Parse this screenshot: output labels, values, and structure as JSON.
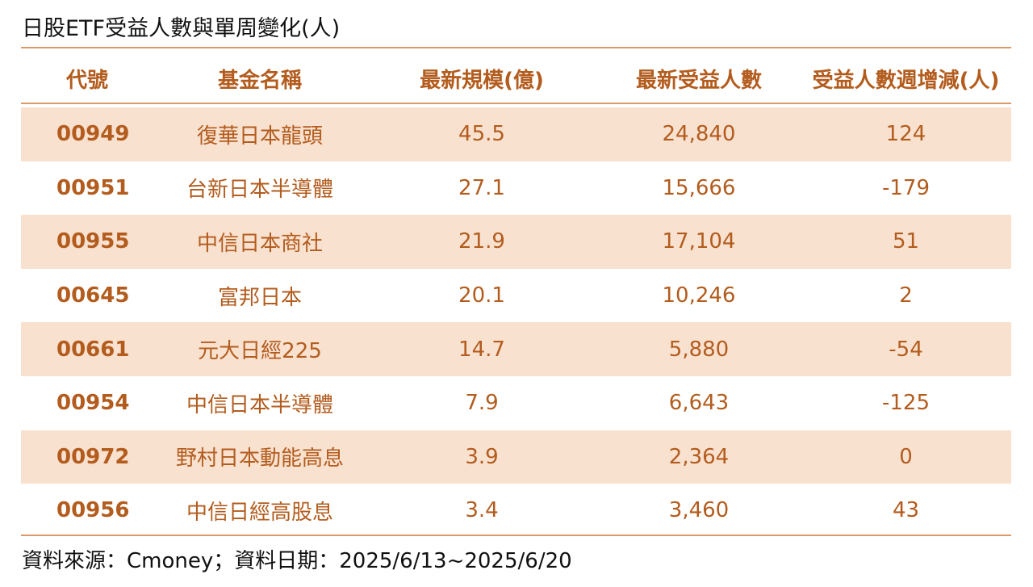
{
  "title": "日股ETF受益人數與單周變化(人)",
  "colors": {
    "accent_text": "#b35c1e",
    "rule": "#d99a6c",
    "row_shade": "#f8e1cf"
  },
  "table": {
    "headers": [
      "代號",
      "基金名稱",
      "最新規模(億)",
      "最新受益人數",
      "受益人數週增減(人)"
    ],
    "rows": [
      {
        "code": "00949",
        "name": "復華日本龍頭",
        "size": "45.5",
        "holders": "24,840",
        "change": "124"
      },
      {
        "code": "00951",
        "name": "台新日本半導體",
        "size": "27.1",
        "holders": "15,666",
        "change": "-179"
      },
      {
        "code": "00955",
        "name": "中信日本商社",
        "size": "21.9",
        "holders": "17,104",
        "change": "51"
      },
      {
        "code": "00645",
        "name": "富邦日本",
        "size": "20.1",
        "holders": "10,246",
        "change": "2"
      },
      {
        "code": "00661",
        "name": "元大日經225",
        "size": "14.7",
        "holders": "5,880",
        "change": "-54"
      },
      {
        "code": "00954",
        "name": "中信日本半導體",
        "size": "7.9",
        "holders": "6,643",
        "change": "-125"
      },
      {
        "code": "00972",
        "name": "野村日本動能高息",
        "size": "3.9",
        "holders": "2,364",
        "change": "0"
      },
      {
        "code": "00956",
        "name": "中信日經高股息",
        "size": "3.4",
        "holders": "3,460",
        "change": "43"
      }
    ]
  },
  "footer": "資料來源：Cmoney；資料日期：2025/6/13~2025/6/20"
}
